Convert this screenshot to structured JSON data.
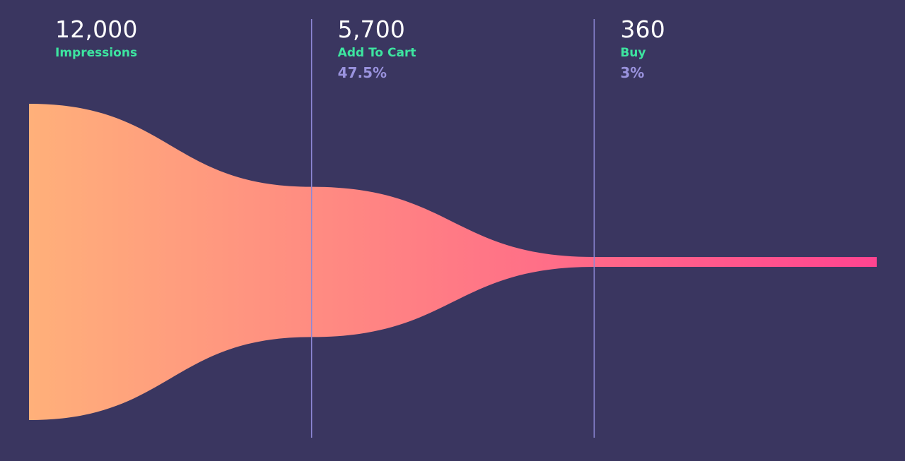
{
  "colors": {
    "background": "#3a3660",
    "funnel_start": "#ffb07a",
    "funnel_end": "#ff4490",
    "divider": "#8e88d6",
    "stage_name": "#3de5a0",
    "percentage": "#9a93de"
  },
  "chart_data": {
    "type": "funnel",
    "stages": [
      {
        "label": "Impressions",
        "value": 12000,
        "value_label": "12,000",
        "percent_label": ""
      },
      {
        "label": "Add To Cart",
        "value": 5700,
        "value_label": "5,700",
        "percent_label": "47.5%"
      },
      {
        "label": "Buy",
        "value": 360,
        "value_label": "360",
        "percent_label": "3%"
      }
    ]
  }
}
